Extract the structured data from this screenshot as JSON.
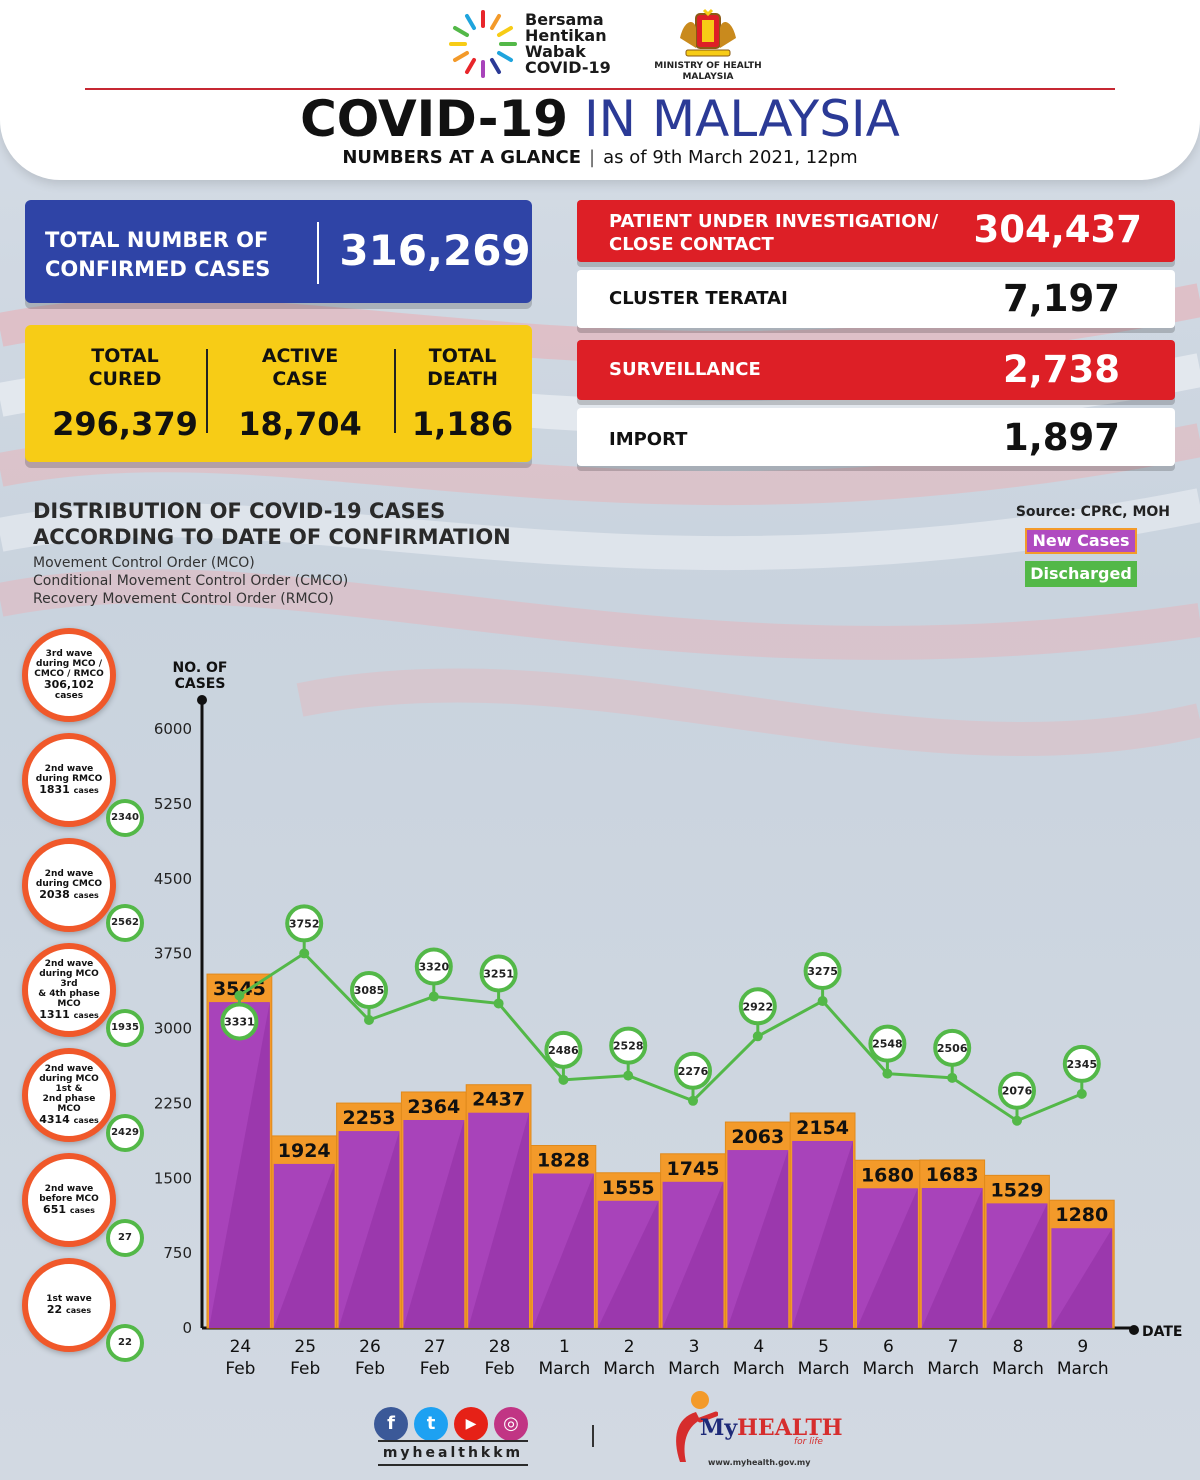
{
  "header": {
    "campaign": [
      "Bersama",
      "Hentikan",
      "Wabak",
      "COVID-19"
    ],
    "ministry": [
      "MINISTRY OF HEALTH",
      "MALAYSIA"
    ],
    "title_bold": "COVID-19",
    "title_light": "IN MALAYSIA",
    "subtitle_bold": "NUMBERS AT A GLANCE",
    "subtitle_sep": "|",
    "subtitle_date": "as of 9th March 2021, 12pm"
  },
  "stats": {
    "total_confirmed": {
      "label_1": "TOTAL NUMBER OF",
      "label_2": "CONFIRMED CASES",
      "value": "316,269"
    },
    "total_cured": {
      "label_1": "TOTAL",
      "label_2": "CURED",
      "value": "296,379"
    },
    "active_case": {
      "label_1": "ACTIVE",
      "label_2": "CASE",
      "value": "18,704"
    },
    "total_death": {
      "label_1": "TOTAL",
      "label_2": "DEATH",
      "value": "1,186"
    },
    "pui": {
      "label_1": "PATIENT UNDER INVESTIGATION/",
      "label_2": "CLOSE CONTACT",
      "value": "304,437"
    },
    "cluster": {
      "label": "CLUSTER TERATAI",
      "value": "7,197"
    },
    "surveillance": {
      "label": "SURVEILLANCE",
      "value": "2,738"
    },
    "import": {
      "label": "IMPORT",
      "value": "1,897"
    }
  },
  "chart_heading": {
    "title_1": "DISTRIBUTION OF COVID-19 CASES",
    "title_2": "ACCORDING TO DATE OF CONFIRMATION",
    "notes": [
      "Movement Control Order (MCO)",
      "Conditional Movement Control Order (CMCO)",
      "Recovery Movement Control Order (RMCO)"
    ],
    "source": "Source: CPRC, MOH",
    "legend_new": "New Cases",
    "legend_discharged": "Discharged"
  },
  "waves": [
    {
      "lines": [
        "3rd wave",
        "during MCO /",
        "CMCO / RMCO"
      ],
      "count": "306,102",
      "unit": "cases",
      "discharged": ""
    },
    {
      "lines": [
        "2nd wave",
        "during RMCO"
      ],
      "count": "1831",
      "unit": "cases",
      "discharged": "2340"
    },
    {
      "lines": [
        "2nd wave",
        "during CMCO"
      ],
      "count": "2038",
      "unit": "cases",
      "discharged": "2562"
    },
    {
      "lines": [
        "2nd wave",
        "during MCO 3rd",
        "& 4th phase MCO"
      ],
      "count": "1311",
      "unit": "cases",
      "discharged": "1935"
    },
    {
      "lines": [
        "2nd wave",
        "during MCO 1st &",
        "2nd phase MCO"
      ],
      "count": "4314",
      "unit": "cases",
      "discharged": "2429"
    },
    {
      "lines": [
        "2nd wave",
        "before MCO"
      ],
      "count": "651",
      "unit": "cases",
      "discharged": "27"
    },
    {
      "lines": [
        "1st wave"
      ],
      "count": "22",
      "unit": "cases",
      "discharged": "22"
    }
  ],
  "colors": {
    "new_cases_fill": "#a843ba",
    "new_cases_cap": "#f39a2a",
    "discharged": "#53b848",
    "title_blue": "#2b3a96",
    "red": "#dd1f26",
    "yellow": "#f7cc16",
    "blue_box": "#2f44a6",
    "wave_ring": "#f0582a"
  },
  "chart_data": {
    "type": "bar",
    "ylabel": "NO. OF CASES",
    "xlabel": "DATE",
    "ylim": [
      0,
      6000
    ],
    "yticks": [
      "0",
      "750",
      "1500",
      "2250",
      "3000",
      "3750",
      "4500",
      "5250",
      "6000"
    ],
    "categories": [
      {
        "day": "24",
        "month": "Feb"
      },
      {
        "day": "25",
        "month": "Feb"
      },
      {
        "day": "26",
        "month": "Feb"
      },
      {
        "day": "27",
        "month": "Feb"
      },
      {
        "day": "28",
        "month": "Feb"
      },
      {
        "day": "1",
        "month": "March"
      },
      {
        "day": "2",
        "month": "March"
      },
      {
        "day": "3",
        "month": "March"
      },
      {
        "day": "4",
        "month": "March"
      },
      {
        "day": "5",
        "month": "March"
      },
      {
        "day": "6",
        "month": "March"
      },
      {
        "day": "7",
        "month": "March"
      },
      {
        "day": "8",
        "month": "March"
      },
      {
        "day": "9",
        "month": "March"
      }
    ],
    "series": [
      {
        "name": "New Cases",
        "type": "bar",
        "values": [
          3545,
          1924,
          2253,
          2364,
          2437,
          1828,
          1555,
          1745,
          2063,
          2154,
          1680,
          1683,
          1529,
          1280
        ]
      },
      {
        "name": "Discharged",
        "type": "line",
        "values": [
          3331,
          3752,
          3085,
          3320,
          3251,
          2486,
          2528,
          2276,
          2922,
          3275,
          2548,
          2506,
          2076,
          2345
        ]
      }
    ]
  },
  "footer": {
    "social": [
      "f",
      "t",
      "▶",
      "◎"
    ],
    "handle": "myhealthkkm",
    "brand_my": "My",
    "brand_health": "HEALTH",
    "tagline": "for life",
    "url": "www.myhealth.gov.my"
  }
}
